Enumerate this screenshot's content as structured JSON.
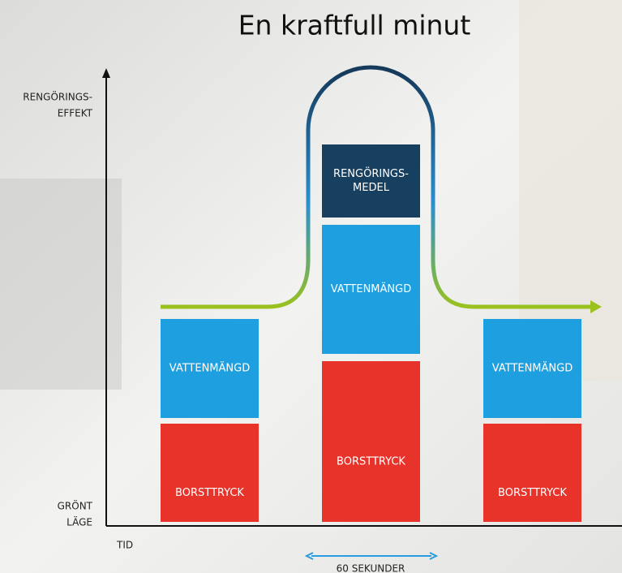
{
  "title": "En kraftfull minut",
  "y_axis": {
    "top_label": [
      "RENGÖRINGS-",
      "EFFEKT"
    ],
    "bottom_label": [
      "GRÖNT",
      "LÄGE"
    ]
  },
  "x_axis": {
    "label": "TID"
  },
  "duration_label": "60 SEKUNDER",
  "columns": [
    {
      "blocks": [
        {
          "label": [
            "VATTENMÄNGD"
          ]
        },
        {
          "label": [
            "BORSTTRYCK"
          ]
        }
      ]
    },
    {
      "blocks": [
        {
          "label": [
            "RENGÖRINGS-",
            "MEDEL"
          ]
        },
        {
          "label": [
            "VATTENMÄNGD"
          ]
        },
        {
          "label": [
            "BORSTTRYCK"
          ]
        }
      ]
    },
    {
      "blocks": [
        {
          "label": [
            "VATTENMÄNGD"
          ]
        },
        {
          "label": [
            "BORSTTRYCK"
          ]
        }
      ]
    }
  ]
}
